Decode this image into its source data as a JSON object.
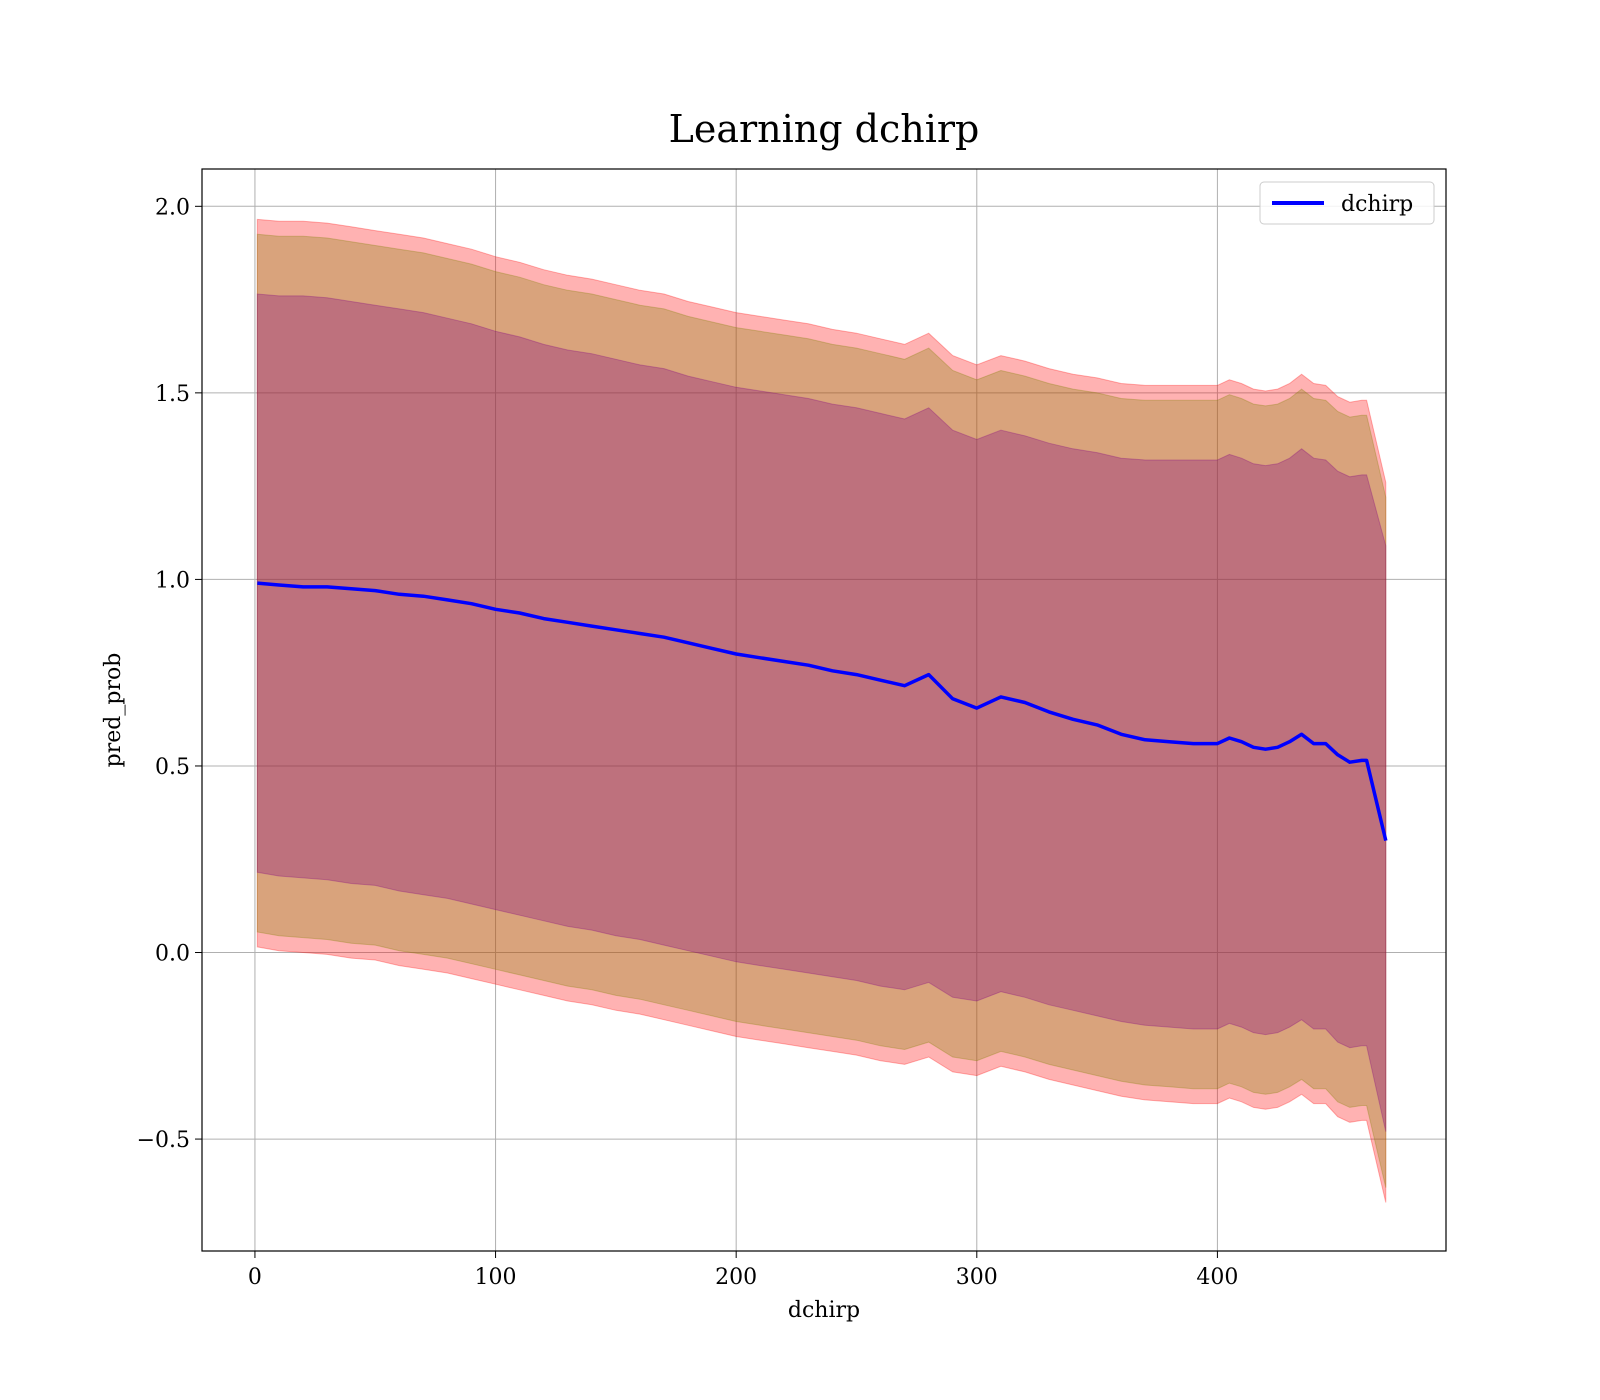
{
  "chart_data": {
    "type": "area",
    "title": "Learning dchirp",
    "xlabel": "dchirp",
    "ylabel": "pred_prob",
    "xlim": [
      -22,
      495
    ],
    "ylim": [
      -0.8,
      2.1
    ],
    "grid": true,
    "legend": {
      "placement": "top-right",
      "entries": [
        "dchirp"
      ]
    },
    "x_ticks": [
      0,
      100,
      200,
      300,
      400
    ],
    "x_tick_labels": [
      "0",
      "100",
      "200",
      "300",
      "400"
    ],
    "y_ticks": [
      -0.5,
      0.0,
      0.5,
      1.0,
      1.5,
      2.0
    ],
    "y_tick_labels": [
      "−0.5",
      "0.0",
      "0.5",
      "1.0",
      "1.5",
      "2.0"
    ],
    "x": [
      1,
      10,
      20,
      30,
      40,
      50,
      60,
      70,
      80,
      90,
      100,
      110,
      120,
      130,
      140,
      150,
      160,
      170,
      180,
      190,
      200,
      210,
      220,
      230,
      240,
      250,
      260,
      270,
      280,
      290,
      300,
      310,
      320,
      330,
      340,
      350,
      360,
      370,
      380,
      390,
      400,
      405,
      410,
      415,
      420,
      425,
      430,
      435,
      440,
      445,
      450,
      455,
      460,
      462,
      470
    ],
    "series": [
      {
        "name": "dchirp",
        "color": "#0000ff",
        "values": [
          0.99,
          0.985,
          0.98,
          0.98,
          0.975,
          0.97,
          0.96,
          0.955,
          0.945,
          0.935,
          0.92,
          0.91,
          0.895,
          0.885,
          0.875,
          0.865,
          0.855,
          0.845,
          0.83,
          0.815,
          0.8,
          0.79,
          0.78,
          0.77,
          0.755,
          0.745,
          0.73,
          0.715,
          0.745,
          0.68,
          0.655,
          0.685,
          0.67,
          0.645,
          0.625,
          0.61,
          0.585,
          0.57,
          0.565,
          0.56,
          0.56,
          0.575,
          0.565,
          0.55,
          0.545,
          0.55,
          0.565,
          0.585,
          0.56,
          0.56,
          0.53,
          0.51,
          0.515,
          0.515,
          0.3
        ]
      }
    ],
    "bands": [
      {
        "color": "#ff0000",
        "opacity": 0.3,
        "upper": [
          1.965,
          1.96,
          1.96,
          1.955,
          1.945,
          1.935,
          1.925,
          1.915,
          1.9,
          1.885,
          1.865,
          1.85,
          1.83,
          1.815,
          1.805,
          1.79,
          1.775,
          1.765,
          1.745,
          1.73,
          1.715,
          1.705,
          1.695,
          1.685,
          1.67,
          1.66,
          1.645,
          1.63,
          1.66,
          1.6,
          1.575,
          1.6,
          1.585,
          1.565,
          1.55,
          1.54,
          1.525,
          1.52,
          1.52,
          1.52,
          1.52,
          1.535,
          1.525,
          1.51,
          1.505,
          1.51,
          1.525,
          1.55,
          1.525,
          1.52,
          1.49,
          1.475,
          1.48,
          1.48,
          1.26
        ],
        "lower": [
          0.015,
          0.005,
          0.0,
          -0.005,
          -0.015,
          -0.02,
          -0.035,
          -0.045,
          -0.055,
          -0.07,
          -0.085,
          -0.1,
          -0.115,
          -0.13,
          -0.14,
          -0.155,
          -0.165,
          -0.18,
          -0.195,
          -0.21,
          -0.225,
          -0.235,
          -0.245,
          -0.255,
          -0.265,
          -0.275,
          -0.29,
          -0.3,
          -0.28,
          -0.32,
          -0.33,
          -0.305,
          -0.32,
          -0.34,
          -0.355,
          -0.37,
          -0.385,
          -0.395,
          -0.4,
          -0.405,
          -0.405,
          -0.39,
          -0.4,
          -0.415,
          -0.42,
          -0.415,
          -0.4,
          -0.38,
          -0.405,
          -0.405,
          -0.44,
          -0.455,
          -0.45,
          -0.45,
          -0.67
        ]
      },
      {
        "color": "#808000",
        "opacity": 0.3,
        "upper": [
          1.925,
          1.92,
          1.92,
          1.915,
          1.905,
          1.895,
          1.885,
          1.875,
          1.86,
          1.845,
          1.825,
          1.81,
          1.79,
          1.775,
          1.765,
          1.75,
          1.735,
          1.725,
          1.705,
          1.69,
          1.675,
          1.665,
          1.655,
          1.645,
          1.63,
          1.62,
          1.605,
          1.59,
          1.62,
          1.56,
          1.535,
          1.56,
          1.545,
          1.525,
          1.51,
          1.5,
          1.485,
          1.48,
          1.48,
          1.48,
          1.48,
          1.495,
          1.485,
          1.47,
          1.465,
          1.47,
          1.485,
          1.51,
          1.485,
          1.48,
          1.45,
          1.435,
          1.44,
          1.44,
          1.22
        ],
        "lower": [
          0.055,
          0.045,
          0.04,
          0.035,
          0.025,
          0.02,
          0.005,
          -0.005,
          -0.015,
          -0.03,
          -0.045,
          -0.06,
          -0.075,
          -0.09,
          -0.1,
          -0.115,
          -0.125,
          -0.14,
          -0.155,
          -0.17,
          -0.185,
          -0.195,
          -0.205,
          -0.215,
          -0.225,
          -0.235,
          -0.25,
          -0.26,
          -0.24,
          -0.28,
          -0.29,
          -0.265,
          -0.28,
          -0.3,
          -0.315,
          -0.33,
          -0.345,
          -0.355,
          -0.36,
          -0.365,
          -0.365,
          -0.35,
          -0.36,
          -0.375,
          -0.38,
          -0.375,
          -0.36,
          -0.34,
          -0.365,
          -0.365,
          -0.4,
          -0.415,
          -0.41,
          -0.41,
          -0.63
        ]
      },
      {
        "color": "#800080",
        "opacity": 0.3,
        "upper": [
          1.765,
          1.76,
          1.76,
          1.755,
          1.745,
          1.735,
          1.725,
          1.715,
          1.7,
          1.685,
          1.665,
          1.65,
          1.63,
          1.615,
          1.605,
          1.59,
          1.575,
          1.565,
          1.545,
          1.53,
          1.515,
          1.505,
          1.495,
          1.485,
          1.47,
          1.46,
          1.445,
          1.43,
          1.46,
          1.4,
          1.375,
          1.4,
          1.385,
          1.365,
          1.35,
          1.34,
          1.325,
          1.32,
          1.32,
          1.32,
          1.32,
          1.335,
          1.325,
          1.31,
          1.305,
          1.31,
          1.325,
          1.35,
          1.325,
          1.32,
          1.29,
          1.275,
          1.28,
          1.28,
          1.09
        ],
        "lower": [
          0.215,
          0.205,
          0.2,
          0.195,
          0.185,
          0.18,
          0.165,
          0.155,
          0.145,
          0.13,
          0.115,
          0.1,
          0.085,
          0.07,
          0.06,
          0.045,
          0.035,
          0.02,
          0.005,
          -0.01,
          -0.025,
          -0.035,
          -0.045,
          -0.055,
          -0.065,
          -0.075,
          -0.09,
          -0.1,
          -0.08,
          -0.12,
          -0.13,
          -0.105,
          -0.12,
          -0.14,
          -0.155,
          -0.17,
          -0.185,
          -0.195,
          -0.2,
          -0.205,
          -0.205,
          -0.19,
          -0.2,
          -0.215,
          -0.22,
          -0.215,
          -0.2,
          -0.18,
          -0.205,
          -0.205,
          -0.24,
          -0.255,
          -0.25,
          -0.25,
          -0.48
        ]
      }
    ]
  }
}
